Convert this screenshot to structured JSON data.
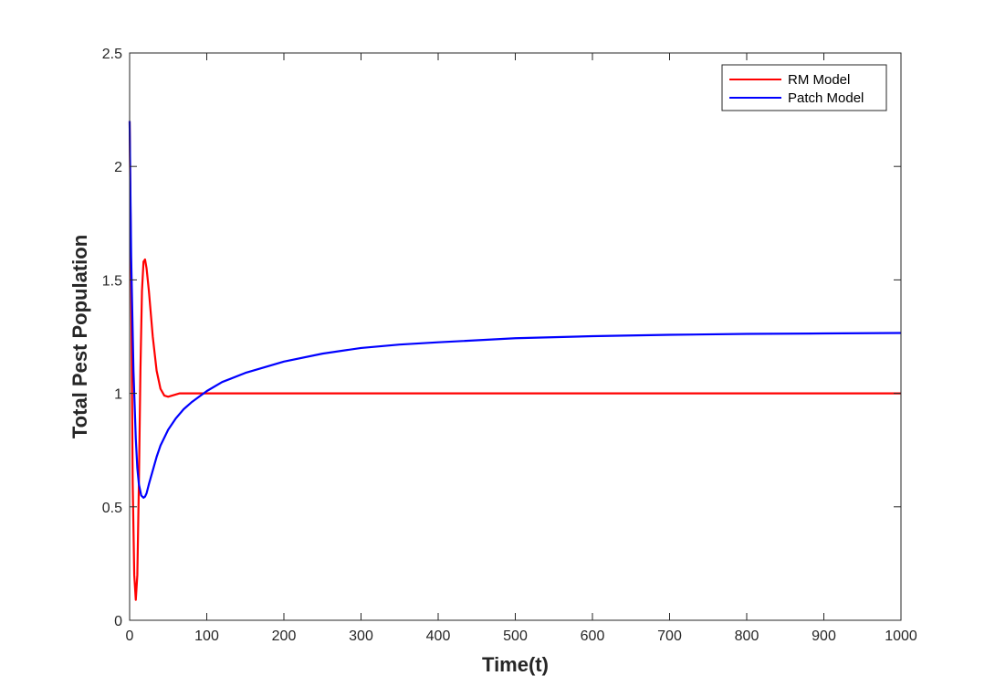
{
  "chart_data": {
    "type": "line",
    "title": "",
    "xlabel": "Time(t)",
    "ylabel": "Total Pest Population",
    "xlim": [
      0,
      1000
    ],
    "ylim": [
      0,
      2.5
    ],
    "xticks": [
      0,
      100,
      200,
      300,
      400,
      500,
      600,
      700,
      800,
      900,
      1000
    ],
    "yticks": [
      0,
      0.5,
      1,
      1.5,
      2,
      2.5
    ],
    "xtick_labels": [
      "0",
      "100",
      "200",
      "300",
      "400",
      "500",
      "600",
      "700",
      "800",
      "900",
      "1000"
    ],
    "ytick_labels": [
      "0",
      "0.5",
      "1",
      "1.5",
      "2",
      "2.5"
    ],
    "grid": false,
    "legend_position": "top-right",
    "series": [
      {
        "name": "RM Model",
        "color": "#ff0000",
        "x": [
          0,
          2,
          4,
          6,
          8,
          10,
          12,
          14,
          16,
          18,
          20,
          22,
          25,
          30,
          35,
          40,
          45,
          50,
          55,
          60,
          65,
          70,
          80,
          100,
          150,
          200,
          300,
          400,
          500,
          600,
          700,
          800,
          900,
          1000
        ],
        "y": [
          2.2,
          1.5,
          0.6,
          0.2,
          0.09,
          0.2,
          0.6,
          1.1,
          1.45,
          1.58,
          1.59,
          1.55,
          1.45,
          1.25,
          1.1,
          1.02,
          0.99,
          0.985,
          0.99,
          0.995,
          1.0,
          1.0,
          1.0,
          1.0,
          1.0,
          1.0,
          1.0,
          1.0,
          1.0,
          1.0,
          1.0,
          1.0,
          1.0,
          1.0
        ]
      },
      {
        "name": "Patch Model",
        "color": "#0000ff",
        "x": [
          0,
          2,
          5,
          8,
          10,
          12,
          15,
          18,
          20,
          22,
          25,
          30,
          35,
          40,
          50,
          60,
          70,
          80,
          100,
          120,
          150,
          200,
          250,
          300,
          350,
          400,
          500,
          600,
          700,
          800,
          900,
          1000
        ],
        "y": [
          2.2,
          1.6,
          1.1,
          0.8,
          0.67,
          0.6,
          0.55,
          0.54,
          0.545,
          0.56,
          0.6,
          0.66,
          0.72,
          0.77,
          0.84,
          0.89,
          0.93,
          0.96,
          1.01,
          1.05,
          1.09,
          1.14,
          1.175,
          1.2,
          1.215,
          1.225,
          1.243,
          1.252,
          1.258,
          1.262,
          1.264,
          1.266
        ]
      }
    ]
  }
}
